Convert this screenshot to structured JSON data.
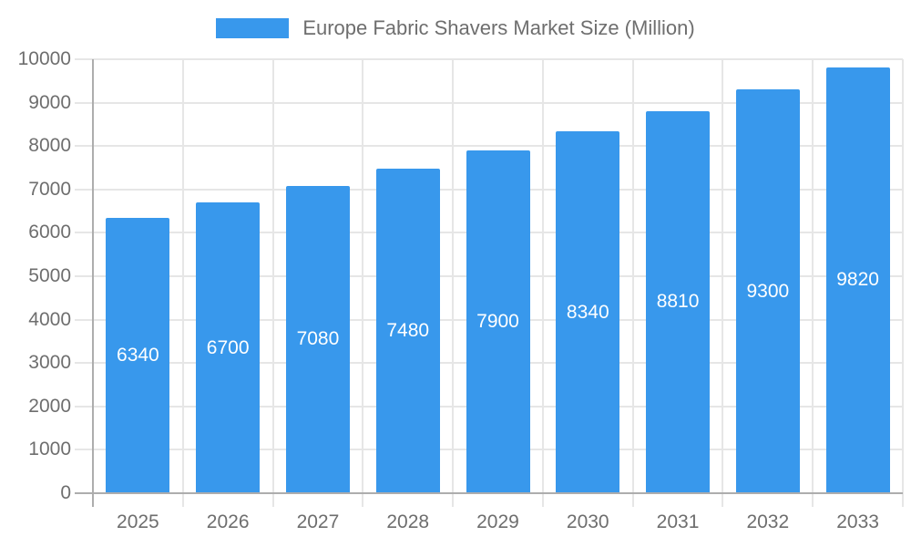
{
  "legend": {
    "label": "Europe Fabric Shavers Market Size (Million)"
  },
  "chart_data": {
    "type": "bar",
    "title": "Europe Fabric Shavers Market Size (Million)",
    "legend_entries": [
      "Europe Fabric Shavers Market Size (Million)"
    ],
    "legend_position": "top-center",
    "categories": [
      "2025",
      "2026",
      "2027",
      "2028",
      "2029",
      "2030",
      "2031",
      "2032",
      "2033"
    ],
    "values": [
      6340,
      6700,
      7080,
      7480,
      7900,
      8340,
      8810,
      9300,
      9820
    ],
    "value_labels": [
      "6340",
      "6700",
      "7080",
      "7480",
      "7900",
      "8340",
      "8810",
      "9300",
      "9820"
    ],
    "value_label_position": "inside-center",
    "xlabel": "",
    "ylabel": "",
    "ylim": [
      0,
      10000
    ],
    "ytick_step": 1000,
    "ytick_labels": [
      "0",
      "1000",
      "2000",
      "3000",
      "4000",
      "5000",
      "6000",
      "7000",
      "8000",
      "9000",
      "10000"
    ],
    "grid": true,
    "colors": {
      "bar": "#3898EC",
      "value_label_text": "#FFFFFF",
      "axis_text": "#6E6E6E",
      "axis_line": "#ADADAD",
      "gridline": "#E6E6E6",
      "background": "#FFFFFF"
    }
  }
}
